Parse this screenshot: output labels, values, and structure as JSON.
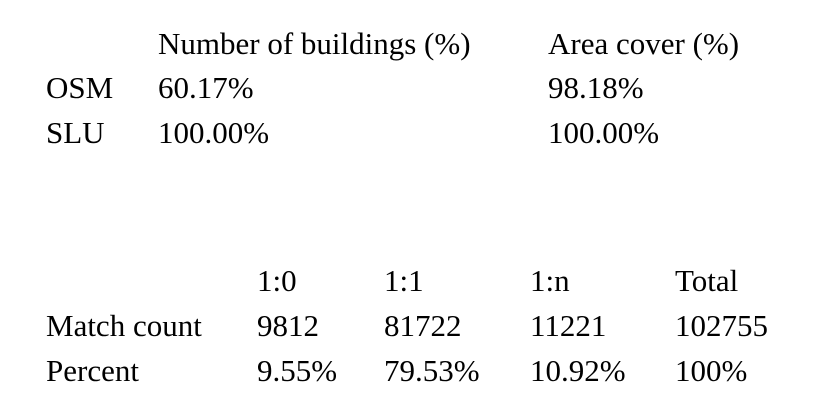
{
  "table1": {
    "headers": [
      "Number of buildings (%)",
      "Area cover (%)"
    ],
    "rows": [
      {
        "label": "OSM",
        "values": [
          "60.17%",
          "98.18%"
        ]
      },
      {
        "label": "SLU",
        "values": [
          "100.00%",
          "100.00%"
        ]
      }
    ]
  },
  "table2": {
    "headers": [
      "1:0",
      "1:1",
      "1:n",
      "Total"
    ],
    "rows": [
      {
        "label": "Match count",
        "values": [
          "9812",
          "81722",
          "11221",
          "102755"
        ]
      },
      {
        "label": "Percent",
        "values": [
          "9.55%",
          "79.53%",
          "10.92%",
          "100%"
        ]
      }
    ]
  }
}
